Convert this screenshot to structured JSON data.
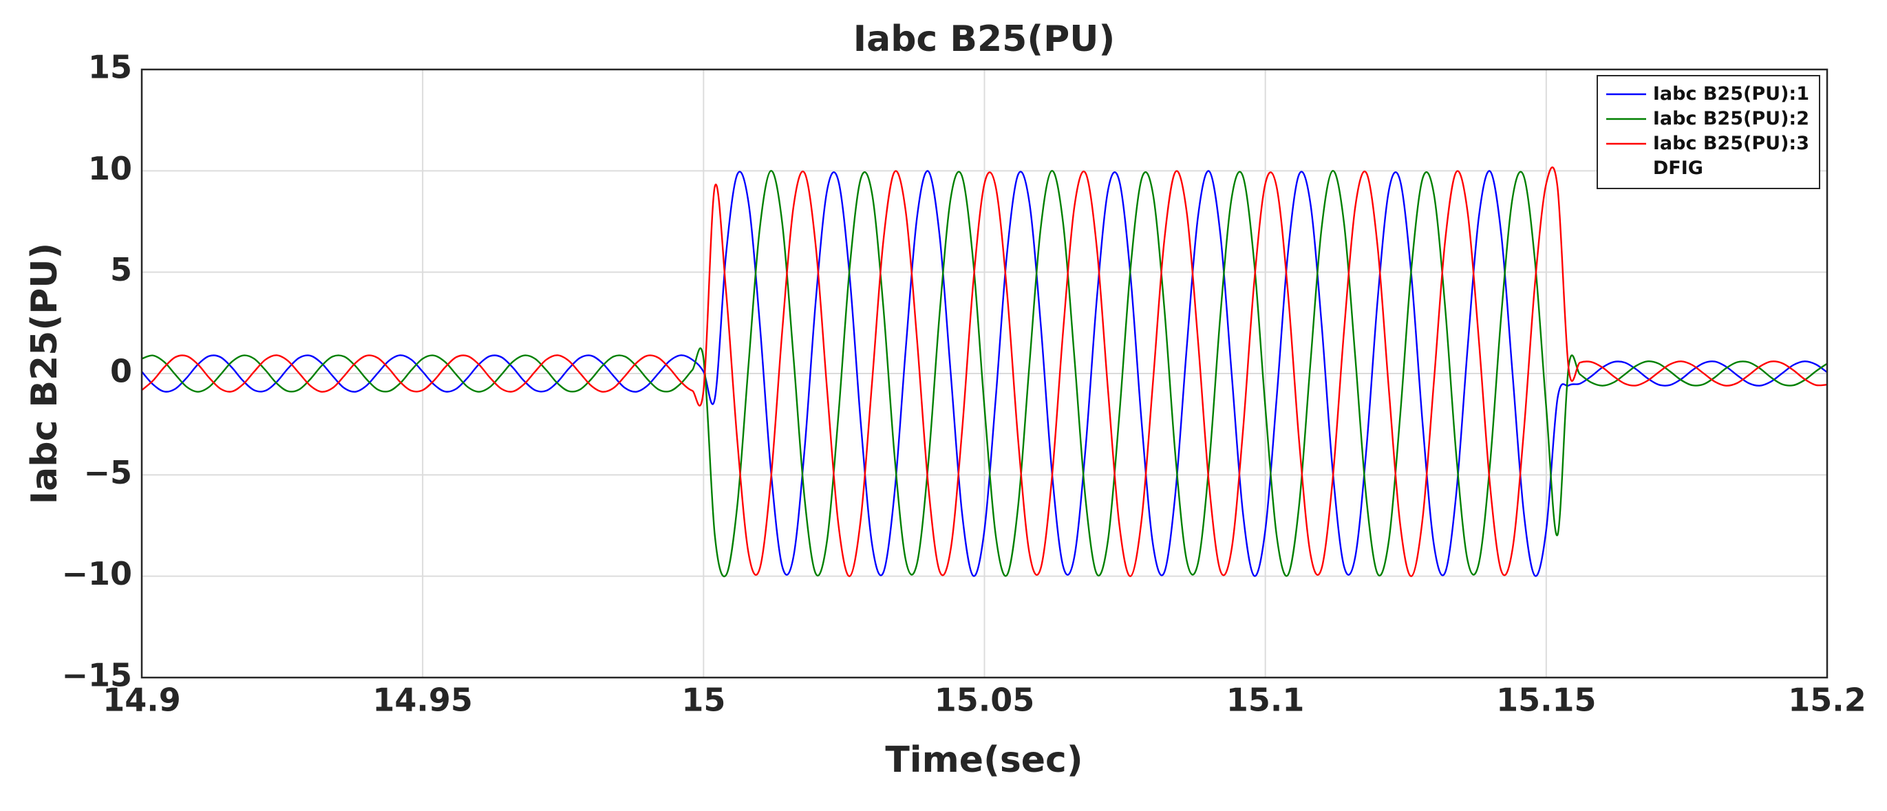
{
  "chart_data": {
    "type": "line",
    "title": "Iabc B25(PU)",
    "xlabel": "Time(sec)",
    "ylabel": "Iabc B25(PU)",
    "x": [
      14.9,
      14.902,
      14.904,
      14.906,
      14.908,
      14.91,
      14.912,
      14.914,
      14.916,
      14.918,
      14.92,
      14.922,
      14.924,
      14.926,
      14.928,
      14.93,
      14.932,
      14.934,
      14.936,
      14.938,
      14.94,
      14.942,
      14.944,
      14.946,
      14.948,
      14.95,
      14.952,
      14.954,
      14.956,
      14.958,
      14.96,
      14.962,
      14.964,
      14.966,
      14.968,
      14.97,
      14.972,
      14.974,
      14.976,
      14.978,
      14.98,
      14.982,
      14.984,
      14.986,
      14.988,
      14.99,
      14.992,
      14.994,
      14.996,
      14.998,
      15,
      15.002,
      15.004,
      15.006,
      15.008,
      15.01,
      15.012,
      15.014,
      15.016,
      15.018,
      15.02,
      15.022,
      15.024,
      15.026,
      15.028,
      15.03,
      15.032,
      15.034,
      15.036,
      15.038,
      15.04,
      15.042,
      15.044,
      15.046,
      15.048,
      15.05,
      15.052,
      15.054,
      15.056,
      15.058,
      15.06,
      15.062,
      15.064,
      15.066,
      15.068,
      15.07,
      15.072,
      15.074,
      15.076,
      15.078,
      15.08,
      15.082,
      15.084,
      15.086,
      15.088,
      15.09,
      15.092,
      15.094,
      15.096,
      15.098,
      15.1,
      15.102,
      15.104,
      15.106,
      15.108,
      15.11,
      15.112,
      15.114,
      15.116,
      15.118,
      15.12,
      15.122,
      15.124,
      15.126,
      15.128,
      15.13,
      15.132,
      15.134,
      15.136,
      15.138,
      15.14,
      15.142,
      15.144,
      15.146,
      15.148,
      15.15,
      15.152,
      15.154,
      15.156,
      15.158,
      15.16,
      15.162,
      15.164,
      15.166,
      15.168,
      15.17,
      15.172,
      15.174,
      15.176,
      15.178,
      15.18,
      15.182,
      15.184,
      15.186,
      15.188,
      15.19,
      15.192,
      15.194,
      15.196,
      15.198,
      15.2
    ],
    "series": [
      {
        "name": "Iabc B25(PU):1",
        "color": "#0000ff",
        "values": [
          0.09,
          -0.54,
          -0.89,
          -0.75,
          -0.21,
          0.45,
          0.86,
          0.81,
          0.31,
          -0.35,
          -0.82,
          -0.85,
          -0.42,
          0.24,
          0.77,
          0.88,
          0.51,
          -0.13,
          -0.71,
          -0.9,
          -0.6,
          0.02,
          0.63,
          0.9,
          0.68,
          0.09,
          -0.54,
          -0.89,
          -0.75,
          -0.21,
          0.45,
          0.86,
          0.81,
          0.31,
          -0.35,
          -0.82,
          -0.85,
          -0.42,
          0.24,
          0.77,
          0.88,
          0.51,
          -0.13,
          -0.71,
          -0.9,
          -0.6,
          0.02,
          0.63,
          0.9,
          0.68,
          0.09,
          -1.25,
          5.88,
          9.82,
          8.44,
          2.49,
          -4.82,
          -9.51,
          -9.05,
          -3.68,
          3.68,
          9.05,
          9.51,
          4.82,
          -2.49,
          -8.44,
          -9.82,
          -5.88,
          1.25,
          7.71,
          9.98,
          6.85,
          0,
          -6.85,
          -9.98,
          -7.71,
          -1.25,
          5.88,
          9.82,
          8.44,
          2.49,
          -4.82,
          -9.51,
          -9.05,
          -3.68,
          3.68,
          9.05,
          9.51,
          4.82,
          -2.49,
          -8.44,
          -9.82,
          -5.88,
          1.25,
          7.71,
          9.98,
          6.85,
          0,
          -6.85,
          -9.98,
          -7.71,
          -1.25,
          5.88,
          9.82,
          8.44,
          2.49,
          -4.82,
          -9.51,
          -9.05,
          -3.68,
          3.68,
          9.05,
          9.51,
          4.82,
          -2.49,
          -8.44,
          -9.82,
          -5.88,
          1.25,
          7.71,
          9.98,
          6.85,
          0,
          -6.85,
          -9.98,
          -7.71,
          -1.25,
          -0.59,
          -0.5,
          -0.14,
          0.3,
          0.57,
          0.54,
          0.21,
          -0.23,
          -0.55,
          -0.57,
          -0.28,
          0.16,
          0.51,
          0.59,
          0.34,
          -0.09,
          -0.47,
          -0.6,
          -0.4,
          0.01,
          0.42,
          0.6,
          0.45,
          0.06
        ]
      },
      {
        "name": "Iabc B25(PU):2",
        "color": "#008000",
        "values": [
          0.73,
          0.89,
          0.57,
          -0.06,
          -0.66,
          -0.9,
          -0.66,
          -0.06,
          0.57,
          0.89,
          0.73,
          0.17,
          -0.48,
          -0.87,
          -0.79,
          -0.28,
          0.38,
          0.84,
          0.84,
          0.38,
          -0.28,
          -0.79,
          -0.87,
          -0.48,
          0.17,
          0.73,
          0.89,
          0.57,
          -0.06,
          -0.66,
          -0.9,
          -0.66,
          -0.06,
          0.57,
          0.89,
          0.73,
          0.17,
          -0.48,
          -0.87,
          -0.79,
          -0.28,
          0.38,
          0.84,
          0.84,
          0.38,
          -0.28,
          -0.79,
          -0.87,
          -0.48,
          0.17,
          0.73,
          -7.97,
          -9.95,
          -6.53,
          0.42,
          7.14,
          10,
          7.43,
          0.84,
          -6.21,
          -9.89,
          -8.21,
          -2.08,
          5.18,
          9.63,
          8.86,
          3.29,
          -4.07,
          -9.22,
          -9.37,
          -4.45,
          2.89,
          8.66,
          9.74,
          5.53,
          -1.67,
          -7.97,
          -9.95,
          -6.53,
          0.42,
          7.14,
          10,
          7.43,
          0.84,
          -6.21,
          -9.89,
          -8.21,
          -2.08,
          5.18,
          9.63,
          8.86,
          3.29,
          -4.07,
          -9.22,
          -9.37,
          -4.45,
          2.89,
          8.66,
          9.74,
          5.53,
          -1.67,
          -7.97,
          -9.95,
          -6.53,
          0.42,
          7.14,
          10,
          7.43,
          0.84,
          -6.21,
          -9.89,
          -8.21,
          -2.08,
          5.18,
          9.63,
          8.86,
          3.29,
          -4.07,
          -9.22,
          -9.37,
          -4.45,
          2.89,
          8.66,
          9.74,
          5.53,
          -1.67,
          -7.97,
          0.38,
          -0.04,
          -0.44,
          -0.6,
          -0.44,
          -0.04,
          0.38,
          0.6,
          0.49,
          0.11,
          -0.32,
          -0.58,
          -0.53,
          -0.19,
          0.26,
          0.56,
          0.56,
          0.26,
          -0.19,
          -0.53,
          -0.58,
          -0.32,
          0.11,
          0.49
        ]
      },
      {
        "name": "Iabc B25(PU):3\nDFIG",
        "color": "#ff0000",
        "values": [
          -0.82,
          -0.35,
          0.31,
          0.81,
          0.86,
          0.45,
          -0.21,
          -0.75,
          -0.89,
          -0.54,
          0.09,
          0.68,
          0.9,
          0.63,
          0.02,
          -0.6,
          -0.9,
          -0.71,
          -0.13,
          0.51,
          0.88,
          0.77,
          0.24,
          -0.42,
          -0.85,
          -0.82,
          -0.35,
          0.31,
          0.81,
          0.86,
          0.45,
          -0.21,
          -0.75,
          -0.89,
          -0.54,
          0.09,
          0.68,
          0.9,
          0.63,
          0.02,
          -0.6,
          -0.9,
          -0.71,
          -0.13,
          0.51,
          0.88,
          0.77,
          0.24,
          -0.42,
          -0.85,
          -0.82,
          9.22,
          4.07,
          -3.29,
          -8.86,
          -9.63,
          -5.18,
          2.08,
          8.21,
          9.89,
          6.21,
          -0.84,
          -7.43,
          -10,
          -7.14,
          -0.42,
          6.53,
          9.95,
          7.97,
          1.67,
          -5.53,
          -9.74,
          -8.66,
          -2.89,
          4.45,
          9.37,
          9.22,
          4.07,
          -3.29,
          -8.86,
          -9.63,
          -5.18,
          2.08,
          8.21,
          9.89,
          6.21,
          -0.84,
          -7.43,
          -10,
          -7.14,
          -0.42,
          6.53,
          9.95,
          7.97,
          1.67,
          -5.53,
          -9.74,
          -8.66,
          -2.89,
          4.45,
          9.37,
          9.22,
          4.07,
          -3.29,
          -8.86,
          -9.63,
          -5.18,
          2.08,
          8.21,
          9.89,
          6.21,
          -0.84,
          -7.43,
          -10,
          -7.14,
          -0.42,
          6.53,
          9.95,
          7.97,
          1.67,
          -5.53,
          -9.74,
          -8.66,
          -2.89,
          4.45,
          9.37,
          9.22,
          0.21,
          0.54,
          0.57,
          0.3,
          -0.14,
          -0.5,
          -0.59,
          -0.36,
          0.06,
          0.45,
          0.6,
          0.42,
          0.01,
          -0.4,
          -0.6,
          -0.47,
          -0.09,
          0.34,
          0.59,
          0.51,
          0.16,
          -0.28,
          -0.57,
          -0.55
        ]
      }
    ],
    "xlim": [
      14.9,
      15.2
    ],
    "xticks": [
      14.9,
      14.95,
      15,
      15.05,
      15.1,
      15.15,
      15.2
    ],
    "ylim": [
      -15,
      15
    ],
    "yticks": [
      {
        "value": -15,
        "label": "−15"
      },
      {
        "value": -10,
        "label": "−10"
      },
      {
        "value": -5,
        "label": "−5"
      },
      0,
      5,
      10,
      15
    ],
    "grid": true,
    "legend_loc": "upper right"
  }
}
